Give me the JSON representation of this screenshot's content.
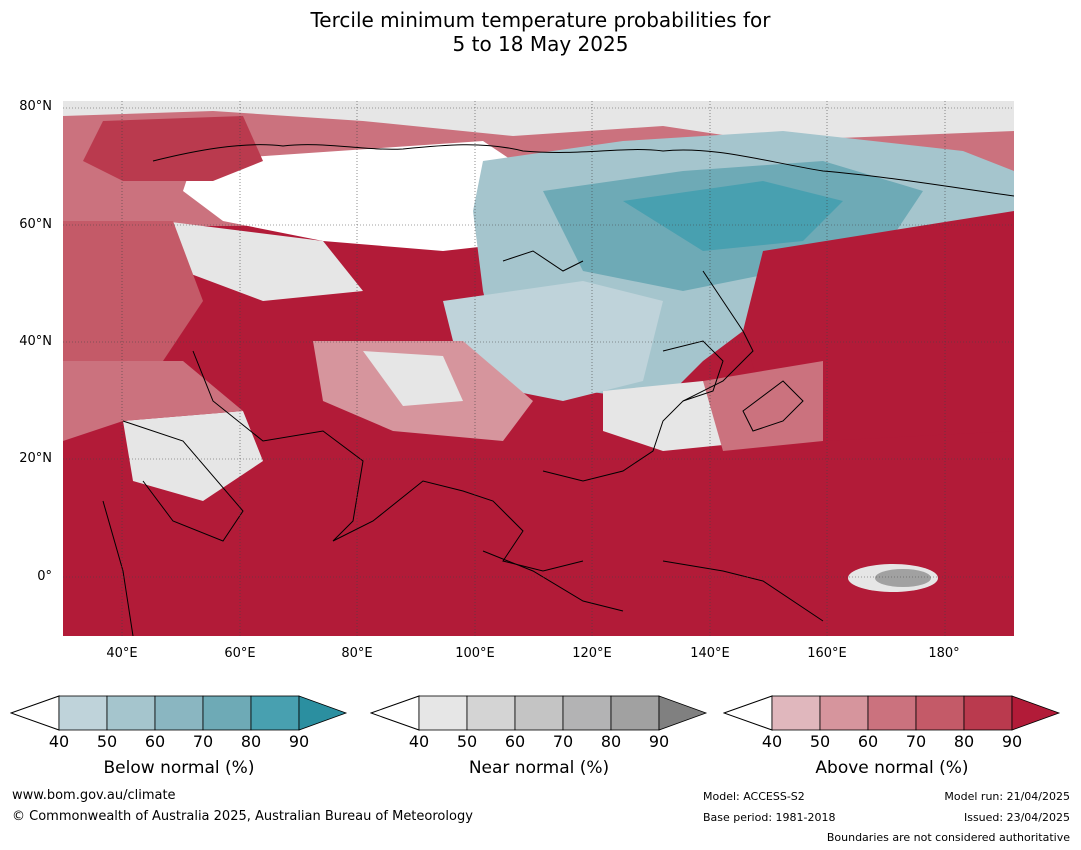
{
  "title": {
    "line1": "Tercile minimum temperature probabilities for",
    "line2": "5 to 18 May 2025"
  },
  "map": {
    "lat_labels": [
      "80°N",
      "60°N",
      "40°N",
      "20°N",
      "0°"
    ],
    "lon_labels": [
      "40°E",
      "60°E",
      "80°E",
      "100°E",
      "120°E",
      "140°E",
      "160°E",
      "180°"
    ],
    "lon_range": [
      30,
      191
    ],
    "lat_range": [
      -10,
      81
    ]
  },
  "legend": {
    "ticks": [
      "40",
      "50",
      "60",
      "70",
      "80",
      "90"
    ],
    "below": {
      "label": "Below normal (%)",
      "colors": [
        "#bfd3da",
        "#a5c5cd",
        "#8ab6c1",
        "#6eaab6",
        "#48a0b0",
        "#2b8fa0"
      ]
    },
    "near": {
      "label": "Near normal (%)",
      "colors": [
        "#e6e6e6",
        "#d4d4d4",
        "#c4c4c4",
        "#b3b3b4",
        "#a1a1a1",
        "#808080"
      ]
    },
    "above": {
      "label": "Above normal (%)",
      "colors": [
        "#e0b7bd",
        "#d6959d",
        "#cb727e",
        "#c45a68",
        "#ba3a4e",
        "#b21b38"
      ]
    }
  },
  "footer": {
    "url": "www.bom.gov.au/climate",
    "copyright": "© Commonwealth of Australia 2025, Australian Bureau of Meteorology",
    "model": "Model: ACCESS-S2",
    "base_period": "Base period: 1981-2018",
    "model_run": "Model run: 21/04/2025",
    "issued": "Issued: 23/04/2025",
    "disclaimer": "Boundaries are not considered authoritative"
  }
}
